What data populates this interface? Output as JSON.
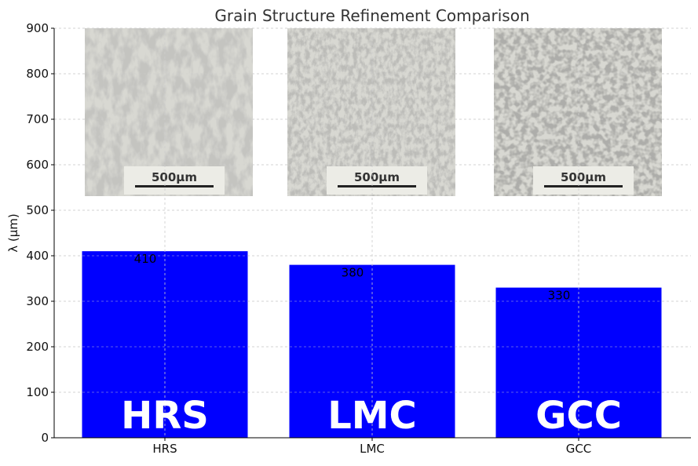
{
  "chart_data": {
    "type": "bar",
    "title": "Grain Structure Refinement Comparison",
    "xlabel": "",
    "ylabel": "λ (μm)",
    "ylim": [
      0,
      900
    ],
    "yticks": [
      0,
      100,
      200,
      300,
      400,
      500,
      600,
      700,
      800,
      900
    ],
    "categories": [
      "HRS",
      "LMC",
      "GCC"
    ],
    "values": [
      410,
      380,
      330
    ],
    "data_labels": [
      "410",
      "380",
      "330"
    ],
    "bar_overlay_labels": [
      "HRS",
      "LMC",
      "GCC"
    ],
    "bar_color": "#0000ff",
    "grid": true,
    "inset_images": [
      {
        "category": "HRS",
        "description_icon": "micrograph-dendritic-coarse",
        "scale_label": "500μm"
      },
      {
        "category": "LMC",
        "description_icon": "micrograph-dendritic-fine",
        "scale_label": "500μm"
      },
      {
        "category": "GCC",
        "description_icon": "micrograph-equiaxed",
        "scale_label": "500μm"
      }
    ]
  }
}
